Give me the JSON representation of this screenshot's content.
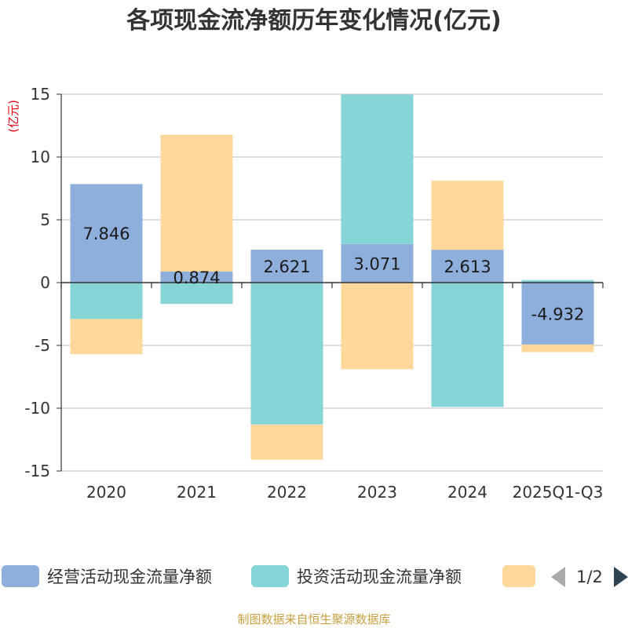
{
  "chart_data": {
    "type": "bar",
    "stacked": true,
    "title": "各项现金流净额历年变化情况(亿元)",
    "ylabel": "(亿元)",
    "ylim": [
      -15,
      15
    ],
    "yticks": [
      15,
      10,
      5,
      0,
      -5,
      -10,
      -15
    ],
    "categories": [
      "2020",
      "2021",
      "2022",
      "2023",
      "2024",
      "2025Q1-Q3"
    ],
    "series": [
      {
        "name": "经营活动现金流量净额",
        "color": "#8eaedb",
        "values": [
          7.846,
          0.874,
          2.621,
          3.071,
          2.613,
          -4.932
        ]
      },
      {
        "name": "投资活动现金流量净额",
        "color": "#85d4d6",
        "values": [
          -2.9,
          -1.7,
          -11.3,
          11.9,
          -9.9,
          0.2
        ]
      },
      {
        "name": "",
        "color": "#fdd89a",
        "values": [
          -2.8,
          10.9,
          -2.8,
          -6.9,
          5.5,
          -0.6
        ]
      }
    ],
    "data_labels": [
      "7.846",
      "0.874",
      "2.621",
      "3.071",
      "2.613",
      "-4.932"
    ],
    "grid": true,
    "legend_position": "bottom",
    "legend_page": "1/2",
    "source": "制图数据来自恒生聚源数据库"
  }
}
